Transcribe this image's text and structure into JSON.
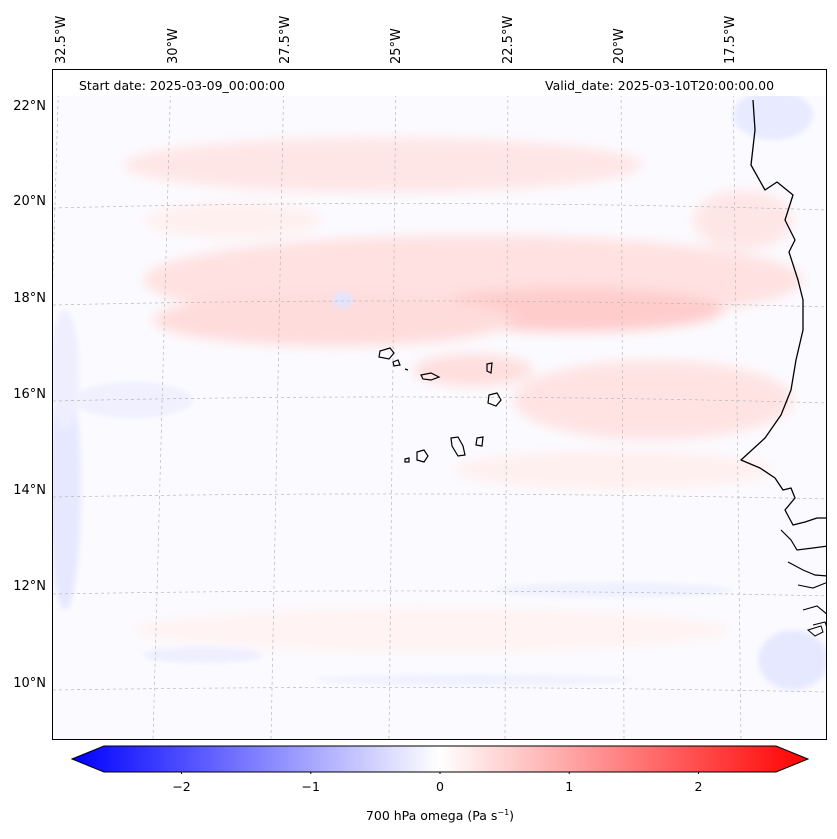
{
  "header": {
    "start_label": "Start date: 2025-03-09_00:00:00",
    "valid_label": "Valid_date: 2025-03-10T20:00:00.00"
  },
  "axes": {
    "lat_labels": [
      "22°N",
      "20°N",
      "18°N",
      "16°N",
      "14°N",
      "12°N",
      "10°N"
    ],
    "lon_labels": [
      "32.5°W",
      "30°W",
      "27.5°W",
      "25°W",
      "22.5°W",
      "20°W",
      "17.5°W"
    ]
  },
  "colorbar": {
    "ticks": [
      "−2",
      "−1",
      "0",
      "1",
      "2"
    ],
    "label_main": "700 hPa omega (Pa s",
    "label_exp": "−1",
    "label_tail": ")",
    "min": -2.6,
    "max": 2.6,
    "colors": {
      "negative": "#0000ff",
      "zero": "#ffffff",
      "positive": "#ff0000"
    }
  }
}
